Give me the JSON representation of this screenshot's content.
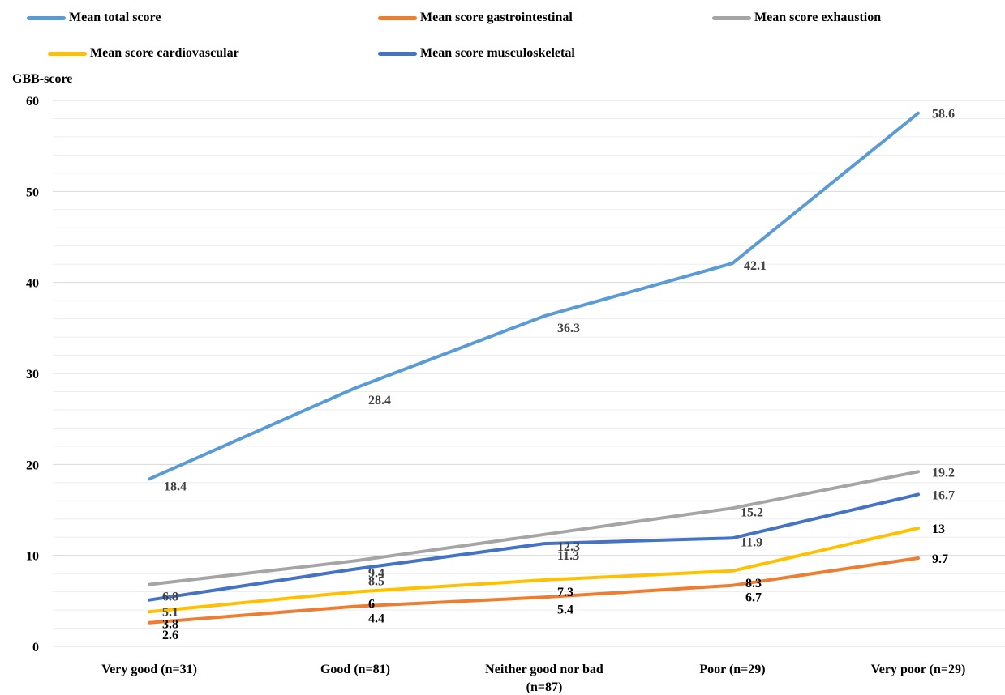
{
  "chart_data": {
    "type": "line",
    "ylabel": "GBB-score",
    "ylim": [
      0,
      60
    ],
    "yticks": [
      0,
      10,
      20,
      30,
      40,
      50,
      60
    ],
    "categories": [
      "Very good (n=31)",
      "Good (n=81)",
      "Neither good nor bad (n=87)",
      "Poor (n=29)",
      "Very poor (n=29)"
    ],
    "grid": true,
    "legend_position": "top",
    "series": [
      {
        "name": "Mean  total score",
        "color": "#5B9BD5",
        "values": [
          18.4,
          28.4,
          36.3,
          42.1,
          58.6
        ],
        "labels": [
          "18.4",
          "28.4",
          "36.3",
          "42.1",
          "58.6"
        ]
      },
      {
        "name": "Mean score gastrointestinal",
        "color": "#ED7D31",
        "values": [
          2.6,
          4.4,
          5.4,
          6.7,
          9.7
        ],
        "labels": [
          "2.6",
          "4.4",
          "5.4",
          "6.7",
          "9.7"
        ]
      },
      {
        "name": "Mean score exhaustion",
        "color": "#A5A5A5",
        "values": [
          6.8,
          9.4,
          12.3,
          15.2,
          19.2
        ],
        "labels": [
          "6.8",
          "9.4",
          "12.3",
          "15.2",
          "19.2"
        ]
      },
      {
        "name": "Mean score cardiovascular",
        "color": "#FFC000",
        "values": [
          3.8,
          6,
          7.3,
          8.3,
          13
        ],
        "labels": [
          "3.8",
          "6",
          "7.3",
          "8.3",
          "13"
        ]
      },
      {
        "name": "Mean score musculoskeletal",
        "color": "#4472C4",
        "values": [
          5.1,
          8.5,
          11.3,
          11.9,
          16.7
        ],
        "labels": [
          "5.1",
          "8.5",
          "11.3",
          "11.9",
          "16.7"
        ]
      }
    ]
  }
}
